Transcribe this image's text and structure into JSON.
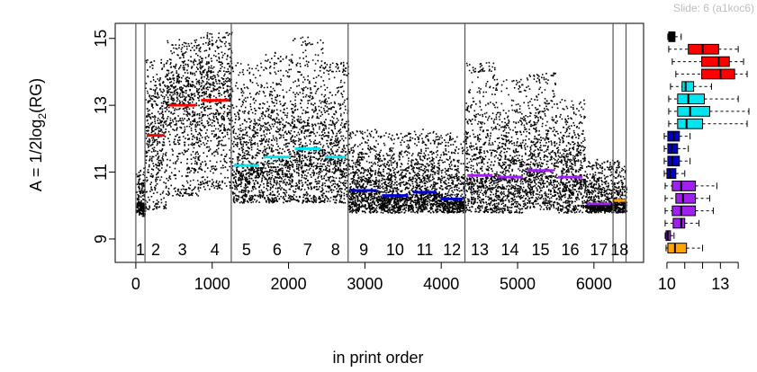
{
  "slide_label": "Slide: 6 (a1koc6)",
  "chart_data": [
    {
      "type": "scatter",
      "title": "",
      "xlabel": "in print order",
      "ylabel_main": "A = 1/2log",
      "ylabel_sub": "2",
      "ylabel_tail": "(RG)",
      "xlim": [
        -270,
        6650
      ],
      "ylim": [
        8.3,
        15.45
      ],
      "x_ticks": [
        0,
        1000,
        2000,
        3000,
        4000,
        5000,
        6000
      ],
      "y_ticks": [
        9,
        11,
        13,
        15
      ],
      "block_boundaries": [
        0,
        120,
        1250,
        2780,
        4310,
        6250,
        6420
      ],
      "groups": [
        {
          "label": "1",
          "x_start": 0,
          "x_end": 120,
          "mean": 10.05,
          "spread_low": 9.7,
          "spread_high": 11.2,
          "color": "#000000"
        },
        {
          "label": "2",
          "x_start": 120,
          "x_end": 400,
          "mean": 12.1,
          "spread_low": 9.9,
          "spread_high": 14.4,
          "color": "#ff0000"
        },
        {
          "label": "3",
          "x_start": 400,
          "x_end": 820,
          "mean": 13.0,
          "spread_low": 10.3,
          "spread_high": 15.0,
          "color": "#ff0000"
        },
        {
          "label": "4",
          "x_start": 820,
          "x_end": 1250,
          "mean": 13.15,
          "spread_low": 10.5,
          "spread_high": 15.2,
          "color": "#ff0000"
        },
        {
          "label": "5",
          "x_start": 1250,
          "x_end": 1650,
          "mean": 11.2,
          "spread_low": 10.1,
          "spread_high": 14.3,
          "color": "#00e5ee"
        },
        {
          "label": "6",
          "x_start": 1650,
          "x_end": 2050,
          "mean": 11.45,
          "spread_low": 10.1,
          "spread_high": 14.6,
          "color": "#00e5ee"
        },
        {
          "label": "7",
          "x_start": 2050,
          "x_end": 2450,
          "mean": 11.7,
          "spread_low": 10.1,
          "spread_high": 15.1,
          "color": "#00e5ee"
        },
        {
          "label": "8",
          "x_start": 2450,
          "x_end": 2780,
          "mean": 11.45,
          "spread_low": 10.1,
          "spread_high": 14.3,
          "color": "#00e5ee"
        },
        {
          "label": "9",
          "x_start": 2780,
          "x_end": 3190,
          "mean": 10.45,
          "spread_low": 9.8,
          "spread_high": 12.3,
          "color": "#0000cd"
        },
        {
          "label": "10",
          "x_start": 3190,
          "x_end": 3600,
          "mean": 10.3,
          "spread_low": 9.8,
          "spread_high": 12.2,
          "color": "#0000cd"
        },
        {
          "label": "11",
          "x_start": 3600,
          "x_end": 3970,
          "mean": 10.4,
          "spread_low": 9.8,
          "spread_high": 12.3,
          "color": "#0000cd"
        },
        {
          "label": "12",
          "x_start": 3970,
          "x_end": 4310,
          "mean": 10.2,
          "spread_low": 9.8,
          "spread_high": 12.2,
          "color": "#0000cd"
        },
        {
          "label": "13",
          "x_start": 4310,
          "x_end": 4700,
          "mean": 10.9,
          "spread_low": 9.8,
          "spread_high": 14.3,
          "color": "#a020f0"
        },
        {
          "label": "14",
          "x_start": 4700,
          "x_end": 5100,
          "mean": 10.85,
          "spread_low": 9.8,
          "spread_high": 13.8,
          "color": "#a020f0"
        },
        {
          "label": "15",
          "x_start": 5100,
          "x_end": 5500,
          "mean": 11.05,
          "spread_low": 9.9,
          "spread_high": 14.0,
          "color": "#a020f0"
        },
        {
          "label": "16",
          "x_start": 5500,
          "x_end": 5880,
          "mean": 10.85,
          "spread_low": 9.8,
          "spread_high": 13.2,
          "color": "#a020f0"
        },
        {
          "label": "17",
          "x_start": 5880,
          "x_end": 6250,
          "mean": 10.05,
          "spread_low": 9.8,
          "spread_high": 11.4,
          "color": "#a020f0"
        },
        {
          "label": "18",
          "x_start": 6250,
          "x_end": 6420,
          "mean": 10.15,
          "spread_low": 9.8,
          "spread_high": 11.4,
          "color": "#ffa500"
        }
      ]
    },
    {
      "type": "boxplot",
      "orientation": "horizontal",
      "xlim": [
        9.7,
        14.6
      ],
      "x_ticks": [
        10,
        13
      ],
      "boxes": [
        {
          "group": "1",
          "color": "#000000",
          "whisker_low": 10.05,
          "q1": 10.1,
          "median": 10.2,
          "q3": 10.45,
          "whisker_high": 10.8
        },
        {
          "group": "2",
          "color": "#ff0000",
          "whisker_low": 10.1,
          "q1": 11.2,
          "median": 12.0,
          "q3": 12.9,
          "whisker_high": 14.0
        },
        {
          "group": "3",
          "color": "#ff0000",
          "whisker_low": 10.3,
          "q1": 11.95,
          "median": 12.9,
          "q3": 13.5,
          "whisker_high": 14.3
        },
        {
          "group": "4",
          "color": "#ff0000",
          "whisker_low": 10.5,
          "q1": 11.95,
          "median": 13.0,
          "q3": 13.8,
          "whisker_high": 14.5
        },
        {
          "group": "5",
          "color": "#00e5ee",
          "whisker_low": 10.2,
          "q1": 10.85,
          "median": 11.05,
          "q3": 11.5,
          "whisker_high": 12.5
        },
        {
          "group": "6",
          "color": "#00e5ee",
          "whisker_low": 10.1,
          "q1": 10.6,
          "median": 11.2,
          "q3": 12.1,
          "whisker_high": 14.0
        },
        {
          "group": "7",
          "color": "#00e5ee",
          "whisker_low": 10.1,
          "q1": 10.6,
          "median": 11.3,
          "q3": 12.4,
          "whisker_high": 14.6
        },
        {
          "group": "8",
          "color": "#00e5ee",
          "whisker_low": 10.1,
          "q1": 10.6,
          "median": 11.1,
          "q3": 12.0,
          "whisker_high": 14.5
        },
        {
          "group": "9",
          "color": "#0000cd",
          "whisker_low": 9.85,
          "q1": 10.05,
          "median": 10.35,
          "q3": 10.7,
          "whisker_high": 11.3
        },
        {
          "group": "10",
          "color": "#0000cd",
          "whisker_low": 9.85,
          "q1": 10.05,
          "median": 10.25,
          "q3": 10.6,
          "whisker_high": 11.2
        },
        {
          "group": "11",
          "color": "#0000cd",
          "whisker_low": 9.85,
          "q1": 10.05,
          "median": 10.3,
          "q3": 10.7,
          "whisker_high": 11.3
        },
        {
          "group": "12",
          "color": "#0000cd",
          "whisker_low": 9.85,
          "q1": 10.0,
          "median": 10.15,
          "q3": 10.5,
          "whisker_high": 11.0
        },
        {
          "group": "13",
          "color": "#a020f0",
          "whisker_low": 9.9,
          "q1": 10.3,
          "median": 10.8,
          "q3": 11.6,
          "whisker_high": 12.8
        },
        {
          "group": "14",
          "color": "#a020f0",
          "whisker_low": 9.9,
          "q1": 10.5,
          "median": 10.9,
          "q3": 11.6,
          "whisker_high": 12.4
        },
        {
          "group": "15",
          "color": "#a020f0",
          "whisker_low": 9.9,
          "q1": 10.3,
          "median": 10.8,
          "q3": 11.6,
          "whisker_high": 12.6
        },
        {
          "group": "16",
          "color": "#a020f0",
          "whisker_low": 9.9,
          "q1": 10.35,
          "median": 10.8,
          "q3": 11.0,
          "whisker_high": 11.8
        },
        {
          "group": "17",
          "color": "#a020f0",
          "whisker_low": 9.9,
          "q1": 9.95,
          "median": 10.05,
          "q3": 10.2,
          "whisker_high": 10.4
        },
        {
          "group": "18",
          "color": "#ffa500",
          "whisker_low": 9.95,
          "q1": 10.05,
          "median": 10.45,
          "q3": 11.1,
          "whisker_high": 12.0
        }
      ]
    }
  ]
}
